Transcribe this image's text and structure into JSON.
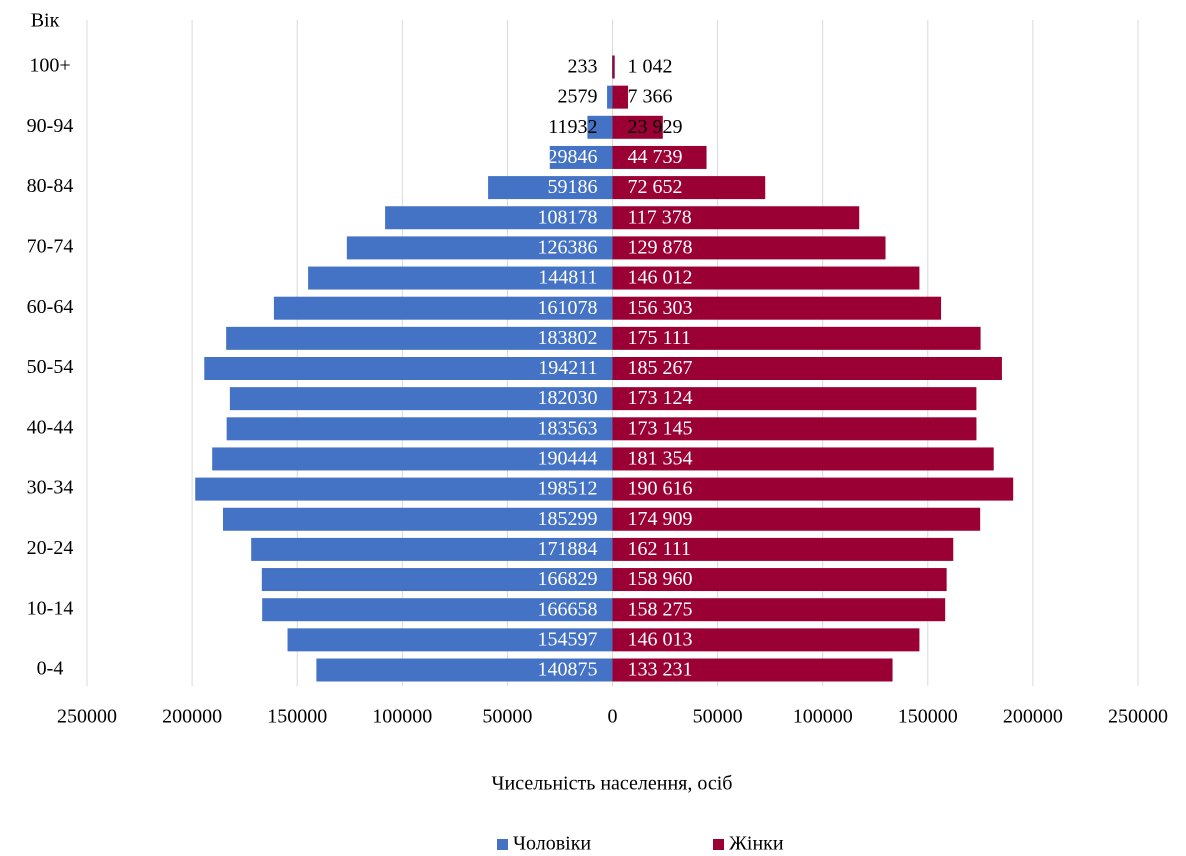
{
  "chart_data": {
    "type": "pyramid",
    "y_axis_label": "Вік",
    "x_axis_label": "Чисельність населення, осіб",
    "categories": [
      "0-4",
      null,
      "10-14",
      null,
      "20-24",
      null,
      "30-34",
      null,
      "40-44",
      null,
      "50-54",
      null,
      "60-64",
      null,
      "70-74",
      null,
      "80-84",
      null,
      "90-94",
      null,
      "100+"
    ],
    "series": [
      {
        "name": "Чоловіки",
        "color": "#4472c4",
        "values": [
          140875,
          154597,
          166658,
          166829,
          171884,
          185299,
          198512,
          190444,
          183563,
          182030,
          194211,
          183802,
          161078,
          144811,
          126386,
          108178,
          59186,
          29846,
          11932,
          2579,
          233
        ]
      },
      {
        "name": "Жінки",
        "color": "#9b0034",
        "values": [
          133231,
          146013,
          158275,
          158960,
          162111,
          174909,
          190616,
          181354,
          173145,
          173124,
          185267,
          175111,
          156303,
          146012,
          129878,
          117378,
          72652,
          44739,
          23929,
          7366,
          1042
        ],
        "value_labels": [
          "133 231",
          "146 013",
          "158 275",
          "158 960",
          "162 111",
          "174 909",
          "190 616",
          "181 354",
          "173 145",
          "173 124",
          "185 267",
          "175 111",
          "156 303",
          "146 012",
          "129 878",
          "117 378",
          "72 652",
          "44 739",
          "23 929",
          "7 366",
          "1 042"
        ]
      }
    ],
    "xlim": [
      -250000,
      250000
    ],
    "xticks": [
      {
        "value": -250000,
        "label": "250000"
      },
      {
        "value": -200000,
        "label": "200000"
      },
      {
        "value": -150000,
        "label": "150000"
      },
      {
        "value": -100000,
        "label": "100000"
      },
      {
        "value": -50000,
        "label": "50000"
      },
      0,
      50000,
      100000,
      150000,
      200000,
      250000
    ],
    "grid": true
  }
}
